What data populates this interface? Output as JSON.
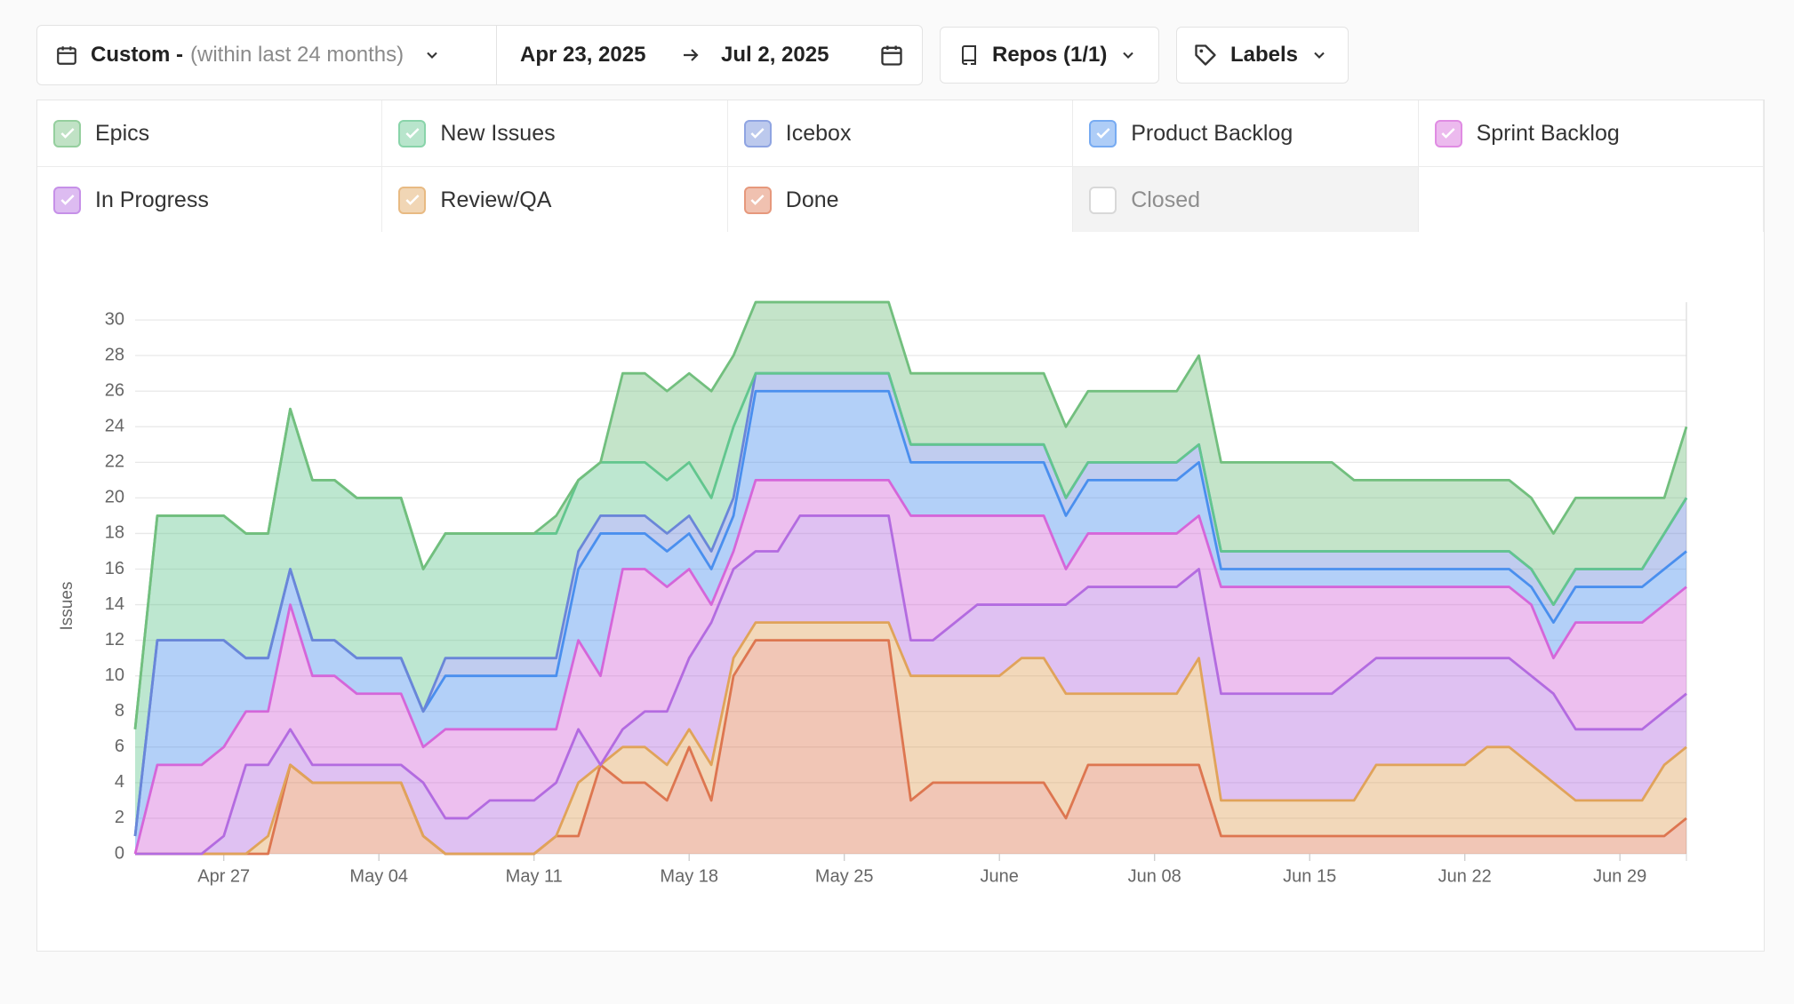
{
  "controls": {
    "date_range": {
      "preset": "Custom -",
      "hint": "(within last 24 months)",
      "start": "Apr 23, 2025",
      "end": "Jul 2, 2025"
    },
    "repos": "Repos (1/1)",
    "labels": "Labels"
  },
  "chart_data": {
    "type": "area",
    "stacked": true,
    "y_label": "Issues",
    "grid": true,
    "x": [
      "Apr 23",
      "Apr 24",
      "Apr 25",
      "Apr 26",
      "Apr 27",
      "Apr 28",
      "Apr 29",
      "Apr 30",
      "May 01",
      "May 02",
      "May 03",
      "May 04",
      "May 05",
      "May 06",
      "May 07",
      "May 08",
      "May 09",
      "May 10",
      "May 11",
      "May 12",
      "May 13",
      "May 14",
      "May 15",
      "May 16",
      "May 17",
      "May 18",
      "May 19",
      "May 20",
      "May 21",
      "May 22",
      "May 23",
      "May 24",
      "May 25",
      "May 26",
      "May 27",
      "May 28",
      "May 29",
      "May 30",
      "May 31",
      "Jun 01",
      "Jun 02",
      "Jun 03",
      "Jun 04",
      "Jun 05",
      "Jun 06",
      "Jun 07",
      "Jun 08",
      "Jun 09",
      "Jun 10",
      "Jun 11",
      "Jun 12",
      "Jun 13",
      "Jun 14",
      "Jun 15",
      "Jun 16",
      "Jun 17",
      "Jun 18",
      "Jun 19",
      "Jun 20",
      "Jun 21",
      "Jun 22",
      "Jun 23",
      "Jun 24",
      "Jun 25",
      "Jun 26",
      "Jun 27",
      "Jun 28",
      "Jun 29",
      "Jun 30",
      "Jul 01",
      "Jul 02"
    ],
    "xticks": [
      "Apr 27",
      "May 04",
      "May 11",
      "May 18",
      "May 25",
      {
        "value": "Jun 01",
        "label": "June"
      },
      "Jun 08",
      "Jun 15",
      "Jun 22",
      "Jun 29"
    ],
    "ylim": [
      0,
      31
    ],
    "yticks": [
      0,
      2,
      4,
      6,
      8,
      10,
      12,
      14,
      16,
      18,
      20,
      22,
      24,
      26,
      28,
      30
    ],
    "series": [
      {
        "name": "Epics",
        "color": "#72bf7e",
        "visible": true,
        "values": [
          0,
          0,
          0,
          0,
          0,
          0,
          0,
          0,
          0,
          0,
          0,
          0,
          0,
          0,
          0,
          0,
          0,
          0,
          0,
          1,
          0,
          0,
          5,
          5,
          5,
          5,
          6,
          4,
          4,
          4,
          4,
          4,
          4,
          4,
          4,
          4,
          4,
          4,
          4,
          4,
          4,
          4,
          4,
          4,
          4,
          4,
          4,
          4,
          5,
          5,
          5,
          5,
          5,
          5,
          5,
          4,
          4,
          4,
          4,
          4,
          4,
          4,
          4,
          4,
          4,
          4,
          4,
          4,
          4,
          2,
          4
        ]
      },
      {
        "name": "New Issues",
        "color": "#62c68e",
        "visible": true,
        "values": [
          6,
          7,
          7,
          7,
          7,
          7,
          7,
          9,
          9,
          9,
          9,
          9,
          9,
          8,
          7,
          7,
          7,
          7,
          7,
          7,
          4,
          3,
          3,
          3,
          3,
          3,
          3,
          4,
          0,
          0,
          0,
          0,
          0,
          0,
          0,
          0,
          0,
          0,
          0,
          0,
          0,
          0,
          0,
          0,
          0,
          0,
          0,
          0,
          0,
          0,
          0,
          0,
          0,
          0,
          0,
          0,
          0,
          0,
          0,
          0,
          0,
          0,
          0,
          0,
          0,
          0,
          0,
          0,
          0,
          0,
          0
        ]
      },
      {
        "name": "Icebox",
        "color": "#6a86d8",
        "visible": true,
        "values": [
          0,
          0,
          0,
          0,
          0,
          0,
          0,
          0,
          0,
          0,
          0,
          0,
          0,
          0,
          1,
          1,
          1,
          1,
          1,
          1,
          1,
          1,
          1,
          1,
          1,
          1,
          1,
          1,
          1,
          1,
          1,
          1,
          1,
          1,
          1,
          1,
          1,
          1,
          1,
          1,
          1,
          1,
          1,
          1,
          1,
          1,
          1,
          1,
          1,
          1,
          1,
          1,
          1,
          1,
          1,
          1,
          1,
          1,
          1,
          1,
          1,
          1,
          1,
          1,
          1,
          1,
          1,
          1,
          1,
          2,
          3
        ]
      },
      {
        "name": "Product Backlog",
        "color": "#4a8fee",
        "visible": true,
        "values": [
          1,
          7,
          7,
          7,
          6,
          3,
          3,
          2,
          2,
          2,
          2,
          2,
          2,
          2,
          3,
          3,
          3,
          3,
          3,
          3,
          4,
          8,
          2,
          2,
          2,
          2,
          2,
          2,
          5,
          5,
          5,
          5,
          5,
          5,
          5,
          3,
          3,
          3,
          3,
          3,
          3,
          3,
          3,
          3,
          3,
          3,
          3,
          3,
          3,
          1,
          1,
          1,
          1,
          1,
          1,
          1,
          1,
          1,
          1,
          1,
          1,
          1,
          1,
          1,
          2,
          2,
          2,
          2,
          2,
          2,
          2
        ]
      },
      {
        "name": "Sprint Backlog",
        "color": "#d566d9",
        "visible": true,
        "values": [
          0,
          5,
          5,
          5,
          5,
          3,
          3,
          7,
          5,
          5,
          4,
          4,
          4,
          2,
          5,
          5,
          4,
          4,
          4,
          3,
          5,
          5,
          9,
          8,
          7,
          5,
          1,
          1,
          4,
          4,
          2,
          2,
          2,
          2,
          2,
          7,
          7,
          6,
          5,
          5,
          5,
          5,
          2,
          3,
          3,
          3,
          3,
          3,
          3,
          6,
          6,
          6,
          6,
          6,
          6,
          5,
          4,
          4,
          4,
          4,
          4,
          4,
          4,
          4,
          2,
          6,
          6,
          6,
          6,
          6,
          6
        ]
      },
      {
        "name": "In Progress",
        "color": "#b36be0",
        "visible": true,
        "values": [
          0,
          0,
          0,
          0,
          1,
          5,
          4,
          2,
          1,
          1,
          1,
          1,
          1,
          3,
          2,
          2,
          3,
          3,
          3,
          3,
          3,
          0,
          1,
          2,
          3,
          4,
          8,
          5,
          4,
          4,
          6,
          6,
          6,
          6,
          6,
          2,
          2,
          3,
          4,
          4,
          3,
          3,
          5,
          6,
          6,
          6,
          6,
          6,
          5,
          6,
          6,
          6,
          6,
          6,
          6,
          7,
          6,
          6,
          6,
          6,
          6,
          5,
          5,
          5,
          5,
          4,
          4,
          4,
          4,
          3,
          3
        ]
      },
      {
        "name": "Review/QA",
        "color": "#e0a35a",
        "visible": true,
        "values": [
          0,
          0,
          0,
          0,
          0,
          0,
          1,
          0,
          0,
          0,
          0,
          0,
          0,
          0,
          0,
          0,
          0,
          0,
          0,
          0,
          3,
          0,
          2,
          2,
          2,
          1,
          2,
          1,
          1,
          1,
          1,
          1,
          1,
          1,
          1,
          7,
          6,
          6,
          6,
          6,
          7,
          7,
          7,
          4,
          4,
          4,
          4,
          4,
          6,
          2,
          2,
          2,
          2,
          2,
          2,
          2,
          4,
          4,
          4,
          4,
          4,
          5,
          5,
          4,
          3,
          2,
          2,
          2,
          2,
          4,
          4
        ]
      },
      {
        "name": "Done",
        "color": "#dd7650",
        "visible": true,
        "values": [
          0,
          0,
          0,
          0,
          0,
          0,
          0,
          5,
          4,
          4,
          4,
          4,
          4,
          1,
          0,
          0,
          0,
          0,
          0,
          1,
          1,
          5,
          4,
          4,
          3,
          6,
          3,
          10,
          12,
          12,
          12,
          12,
          12,
          12,
          12,
          3,
          4,
          4,
          4,
          4,
          4,
          4,
          2,
          5,
          5,
          5,
          5,
          5,
          5,
          1,
          1,
          1,
          1,
          1,
          1,
          1,
          1,
          1,
          1,
          1,
          1,
          1,
          1,
          1,
          1,
          1,
          1,
          1,
          1,
          1,
          2
        ]
      },
      {
        "name": "Closed",
        "color": "#9e9e9e",
        "visible": false
      }
    ]
  }
}
